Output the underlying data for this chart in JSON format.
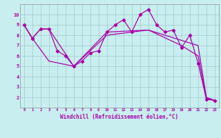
{
  "xlabel": "Windchill (Refroidissement éolien,°C)",
  "background_color": "#c8eef0",
  "grid_color": "#a0c8cc",
  "line_color": "#aa00aa",
  "xlim": [
    -0.5,
    23.5
  ],
  "ylim": [
    1.0,
    11.0
  ],
  "xticks": [
    0,
    1,
    2,
    3,
    4,
    5,
    6,
    7,
    8,
    9,
    10,
    11,
    12,
    13,
    14,
    15,
    16,
    17,
    18,
    19,
    20,
    21,
    22,
    23
  ],
  "yticks": [
    2,
    3,
    4,
    5,
    6,
    7,
    8,
    9,
    10
  ],
  "series1_x": [
    0,
    1,
    2,
    3,
    4,
    5,
    6,
    7,
    8,
    9,
    10,
    11,
    12,
    13,
    14,
    15,
    16,
    17,
    18,
    19,
    20,
    21,
    22,
    23
  ],
  "series1_y": [
    9.0,
    7.7,
    8.6,
    8.6,
    6.5,
    6.0,
    5.0,
    5.5,
    6.3,
    6.5,
    8.3,
    9.0,
    9.5,
    8.3,
    10.0,
    10.5,
    9.0,
    8.3,
    8.5,
    6.8,
    8.0,
    5.3,
    1.8,
    1.7
  ],
  "series2_x": [
    0,
    1,
    3,
    6,
    10,
    15,
    19,
    21,
    22,
    23
  ],
  "series2_y": [
    9.0,
    7.7,
    5.5,
    5.0,
    8.0,
    8.5,
    7.0,
    6.0,
    1.9,
    1.7
  ],
  "series3_x": [
    0,
    1,
    2,
    3,
    6,
    10,
    15,
    19,
    21,
    22,
    23
  ],
  "series3_y": [
    9.0,
    7.7,
    8.6,
    8.6,
    5.0,
    8.3,
    8.5,
    7.5,
    7.0,
    2.0,
    1.7
  ]
}
